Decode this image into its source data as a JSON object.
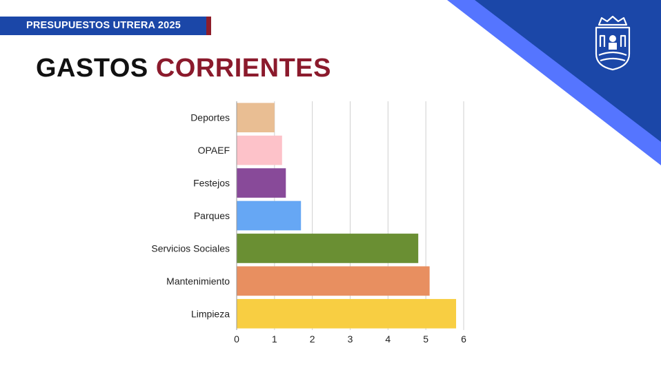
{
  "header": {
    "label": "PRESUPUESTOS UTRERA 2025"
  },
  "title": {
    "part1": "GASTOS",
    "part2": "CORRIENTES"
  },
  "colors": {
    "brand_blue": "#1b47a8",
    "accent_blue": "#5575ff",
    "accent_red": "#8b1a2c"
  },
  "logo": {
    "icon": "city-crest-icon"
  },
  "chart_data": {
    "type": "bar",
    "orientation": "horizontal",
    "categories": [
      "Deportes",
      "OPAEF",
      "Festejos",
      "Parques",
      "Servicios Sociales",
      "Mantenimiento",
      "Limpieza"
    ],
    "values": [
      1.0,
      1.2,
      1.3,
      1.7,
      4.8,
      5.1,
      5.8
    ],
    "colors": [
      "#e9be93",
      "#fdc2c9",
      "#884a99",
      "#66a7f4",
      "#6a8f33",
      "#e88f60",
      "#f8ce42"
    ],
    "xlim": [
      0,
      6
    ],
    "xticks": [
      0,
      1,
      2,
      3,
      4,
      5,
      6
    ],
    "grid": true
  }
}
